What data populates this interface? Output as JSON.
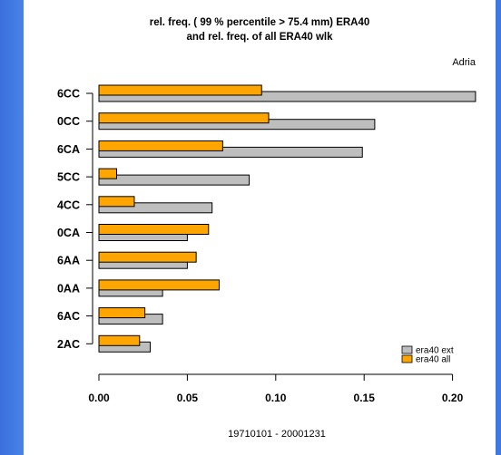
{
  "chart_data": {
    "type": "bar",
    "orientation": "horizontal",
    "title_line1": "rel. freq. ( 99 % percentile > 75.4 mm) ERA40",
    "title_line2": "and rel. freq. of all ERA40 wlk",
    "region_label": "Adria",
    "footer": "19710101 - 20001231",
    "categories": [
      "6CC",
      "0CC",
      "6CA",
      "5CC",
      "4CC",
      "0CA",
      "6AA",
      "0AA",
      "6AC",
      "2AC"
    ],
    "series": [
      {
        "name": "era40 ext",
        "color": "#bebebe",
        "values": [
          0.213,
          0.156,
          0.149,
          0.085,
          0.064,
          0.05,
          0.05,
          0.036,
          0.036,
          0.029
        ]
      },
      {
        "name": "era40 all",
        "color": "#ffa500",
        "values": [
          0.092,
          0.096,
          0.07,
          0.01,
          0.02,
          0.062,
          0.055,
          0.068,
          0.026,
          0.023
        ]
      }
    ],
    "xlim": [
      0,
      0.215
    ],
    "xticks": [
      "0.00",
      "0.05",
      "0.10",
      "0.15",
      "0.20"
    ],
    "xtick_values": [
      0,
      0.05,
      0.1,
      0.15,
      0.2
    ],
    "legend_position": "bottom-right",
    "grid": false
  }
}
